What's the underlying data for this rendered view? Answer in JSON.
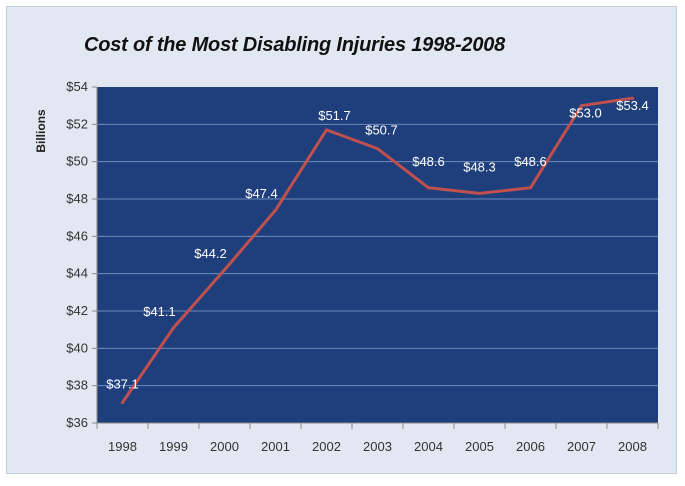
{
  "chart_data": {
    "type": "line",
    "title": "Cost of the Most Disabling Injuries 1998-2008",
    "xlabel": "",
    "ylabel": "Billions",
    "categories": [
      "1998",
      "1999",
      "2000",
      "2001",
      "2002",
      "2003",
      "2004",
      "2005",
      "2006",
      "2007",
      "2008"
    ],
    "series": [
      {
        "name": "",
        "values": [
          37.1,
          41.1,
          44.2,
          47.4,
          51.7,
          50.7,
          48.6,
          48.3,
          48.6,
          53.0,
          53.4
        ],
        "labels": [
          "$37.1",
          "$41.1",
          "$44.2",
          "$47.4",
          "$51.7",
          "$50.7",
          "$48.6",
          "$48.3",
          "$48.6",
          "$53.0",
          "$53.4"
        ]
      }
    ],
    "ylim": [
      36,
      54
    ],
    "yticks": [
      36,
      38,
      40,
      42,
      44,
      46,
      48,
      50,
      52,
      54
    ],
    "ytick_labels": [
      "$36",
      "$38",
      "$40",
      "$42",
      "$44",
      "$46",
      "$48",
      "$50",
      "$52",
      "$54"
    ],
    "grid": true,
    "legend": "none",
    "colors": {
      "plot_background": "#1f3f7c",
      "line": "#c0504d",
      "gridline": "#6f8bbd",
      "panel_background": "#e1e8f1",
      "data_label": "#ffffff"
    }
  }
}
